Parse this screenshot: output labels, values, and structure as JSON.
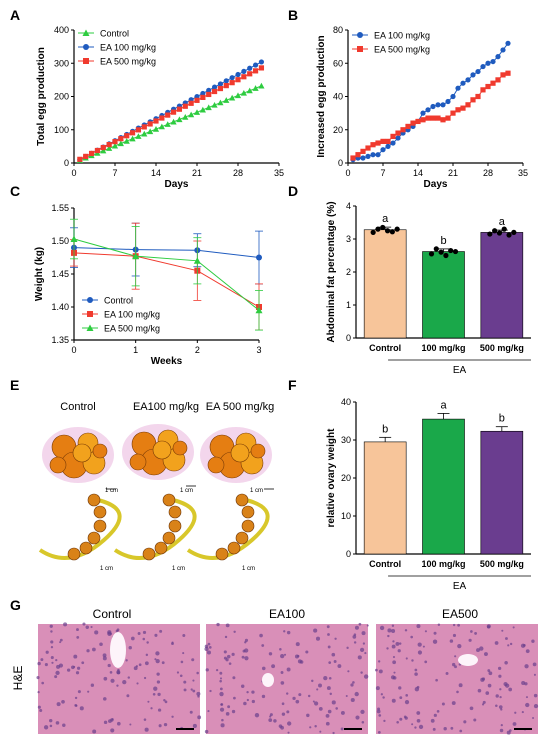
{
  "colors": {
    "control": "#2ecc40",
    "ea100": "#1f5bbf",
    "ea500": "#f03a2e",
    "bar_control": "#f7c59a",
    "bar_ea100": "#1aa84a",
    "bar_ea500": "#6a3d8f",
    "tissue": "#d98fb8"
  },
  "panels": {
    "A": {
      "letter": "A",
      "chart_data": {
        "type": "line",
        "ylabel": "Total egg production",
        "xlabel": "Days",
        "xlim": [
          0,
          35
        ],
        "ylim": [
          0,
          400
        ],
        "xticks": [
          0,
          7,
          14,
          21,
          28,
          35
        ],
        "yticks": [
          0,
          100,
          200,
          300,
          400
        ],
        "legend": "top-left",
        "series": [
          {
            "key": "control",
            "name": "Control",
            "marker": "triangle",
            "x_start": 1,
            "x_end": 32,
            "y_start": 8,
            "y_end": 232
          },
          {
            "key": "ea100",
            "name": "EA 100 mg/kg",
            "marker": "circle",
            "x_start": 1,
            "x_end": 32,
            "y_start": 10,
            "y_end": 304
          },
          {
            "key": "ea500",
            "name": "EA 500 mg/kg",
            "marker": "square",
            "x_start": 1,
            "x_end": 32,
            "y_start": 11,
            "y_end": 286
          }
        ]
      }
    },
    "B": {
      "letter": "B",
      "chart_data": {
        "type": "line",
        "ylabel": "Increased egg production",
        "xlabel": "Days",
        "xlim": [
          0,
          35
        ],
        "ylim": [
          0,
          80
        ],
        "xticks": [
          0,
          7,
          14,
          21,
          28,
          35
        ],
        "yticks": [
          0,
          20,
          40,
          60,
          80
        ],
        "legend": "top-left",
        "series": [
          {
            "key": "ea100",
            "name": "EA 100 mg/kg",
            "marker": "circle",
            "x": [
              1,
              2,
              3,
              4,
              5,
              6,
              7,
              8,
              9,
              10,
              11,
              12,
              13,
              14,
              15,
              16,
              17,
              18,
              19,
              20,
              21,
              22,
              23,
              24,
              25,
              26,
              27,
              28,
              29,
              30,
              31,
              32
            ],
            "y": [
              2,
              3,
              3,
              4,
              5,
              5,
              8,
              10,
              12,
              15,
              18,
              20,
              22,
              25,
              30,
              32,
              34,
              35,
              35,
              37,
              40,
              45,
              48,
              50,
              53,
              55,
              58,
              60,
              61,
              64,
              68,
              72
            ]
          },
          {
            "key": "ea500",
            "name": "EA 500 mg/kg",
            "marker": "square",
            "x": [
              1,
              2,
              3,
              4,
              5,
              6,
              7,
              8,
              9,
              10,
              11,
              12,
              13,
              14,
              15,
              16,
              17,
              18,
              19,
              20,
              21,
              22,
              23,
              24,
              25,
              26,
              27,
              28,
              29,
              30,
              31,
              32
            ],
            "y": [
              3,
              5,
              7,
              9,
              11,
              12,
              13,
              13,
              16,
              18,
              20,
              22,
              24,
              25,
              26,
              27,
              27,
              27,
              26,
              27,
              30,
              32,
              33,
              35,
              38,
              40,
              44,
              46,
              48,
              50,
              53,
              54
            ]
          }
        ]
      }
    },
    "C": {
      "letter": "C",
      "chart_data": {
        "type": "line",
        "ylabel": "Weight (kg)",
        "xlabel": "Weeks",
        "xlim": [
          0,
          3
        ],
        "ylim": [
          1.35,
          1.55
        ],
        "xticks": [
          0,
          1,
          2,
          3
        ],
        "yticks": [
          1.35,
          1.4,
          1.45,
          1.5,
          1.55
        ],
        "legend": "bottom-left",
        "series": [
          {
            "key": "ea100",
            "name": "Control",
            "marker": "circle",
            "x": [
              0,
              1,
              2,
              3
            ],
            "y": [
              1.49,
              1.487,
              1.486,
              1.475
            ],
            "err": [
              0.03,
              0.04,
              0.025,
              0.04
            ]
          },
          {
            "key": "ea500",
            "name": "EA 100 mg/kg",
            "marker": "square",
            "x": [
              0,
              1,
              2,
              3
            ],
            "y": [
              1.482,
              1.477,
              1.455,
              1.4
            ],
            "err": [
              0.02,
              0.05,
              0.045,
              0.035
            ]
          },
          {
            "key": "control",
            "name": "EA 500 mg/kg",
            "marker": "triangle",
            "x": [
              0,
              1,
              2,
              3
            ],
            "y": [
              1.503,
              1.477,
              1.47,
              1.395
            ],
            "err": [
              0.03,
              0.045,
              0.035,
              0.03
            ]
          }
        ]
      }
    },
    "D": {
      "letter": "D",
      "chart_data": {
        "type": "bar",
        "ylabel": "Abdominal fat percentage (%)",
        "categories": [
          "Control",
          "100 mg/kg",
          "500 mg/kg"
        ],
        "group_label": "EA",
        "values": [
          3.28,
          2.62,
          3.2
        ],
        "err": [
          0.08,
          0.08,
          0.07
        ],
        "letters": [
          "a",
          "b",
          "a"
        ],
        "points": [
          [
            3.2,
            3.3,
            3.35,
            3.25,
            3.22,
            3.3
          ],
          [
            2.55,
            2.7,
            2.6,
            2.5,
            2.65,
            2.62
          ],
          [
            3.15,
            3.25,
            3.18,
            3.3,
            3.12,
            3.2
          ]
        ],
        "ylim": [
          0,
          4
        ],
        "yticks": [
          0,
          1,
          2,
          3,
          4
        ]
      }
    },
    "E": {
      "letter": "E",
      "labels": [
        "Control",
        "EA100 mg/kg",
        "EA 500 mg/kg"
      ],
      "scale_label": "1 cm"
    },
    "F": {
      "letter": "F",
      "chart_data": {
        "type": "bar",
        "ylabel": "relative ovary weight",
        "categories": [
          "Control",
          "100 mg/kg",
          "500 mg/kg"
        ],
        "group_label": "EA",
        "values": [
          29.5,
          35.5,
          32.3
        ],
        "err": [
          1.2,
          1.5,
          1.2
        ],
        "letters": [
          "b",
          "a",
          "b"
        ],
        "ylim": [
          0,
          40
        ],
        "yticks": [
          0,
          10,
          20,
          30,
          40
        ]
      }
    },
    "G": {
      "letter": "G",
      "row_label": "H&E",
      "labels": [
        "Control",
        "EA100",
        "EA500"
      ]
    }
  }
}
